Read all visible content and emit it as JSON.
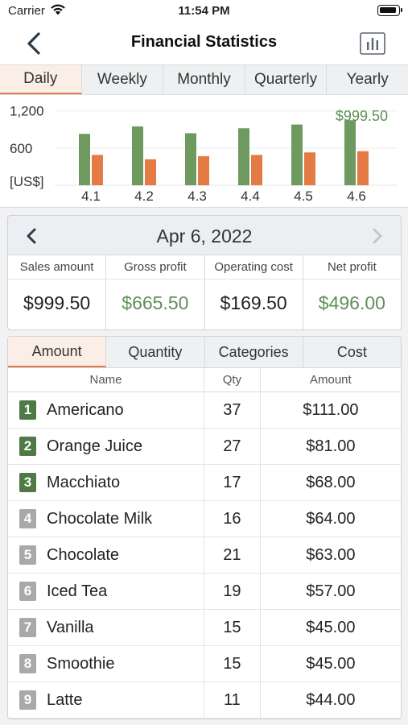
{
  "status_bar": {
    "carrier": "Carrier",
    "time": "11:54 PM"
  },
  "nav": {
    "title": "Financial Statistics",
    "back_icon": "chevron-left-icon",
    "chart_icon": "bar-chart-icon"
  },
  "period_tabs": [
    {
      "label": "Daily",
      "active": true
    },
    {
      "label": "Weekly",
      "active": false
    },
    {
      "label": "Monthly",
      "active": false
    },
    {
      "label": "Quarterly",
      "active": false
    },
    {
      "label": "Yearly",
      "active": false
    }
  ],
  "chart_data": {
    "type": "bar",
    "categories": [
      "4.1",
      "4.2",
      "4.3",
      "4.4",
      "4.5",
      "4.6"
    ],
    "series": [
      {
        "color": "#6e9a5f",
        "values": [
          830,
          950,
          840,
          920,
          980,
          1050
        ]
      },
      {
        "color": "#e47b45",
        "values": [
          490,
          420,
          470,
          490,
          530,
          550
        ]
      }
    ],
    "y_ticks": [
      "1,200",
      "600"
    ],
    "ylabel": "[US$]",
    "ylim": [
      0,
      1300
    ],
    "annotation": "$999.50",
    "annotation_color": "#5f8f57",
    "grid": true
  },
  "date_card": {
    "date": "Apr 6, 2022",
    "metrics": [
      {
        "label": "Sales amount",
        "value": "$999.50",
        "green": false
      },
      {
        "label": "Gross profit",
        "value": "$665.50",
        "green": true
      },
      {
        "label": "Operating cost",
        "value": "$169.50",
        "green": false
      },
      {
        "label": "Net profit",
        "value": "$496.00",
        "green": true
      }
    ]
  },
  "table_tabs": [
    {
      "label": "Amount",
      "active": true
    },
    {
      "label": "Quantity",
      "active": false
    },
    {
      "label": "Categories",
      "active": false
    },
    {
      "label": "Cost",
      "active": false
    }
  ],
  "table": {
    "headers": {
      "name": "Name",
      "qty": "Qty",
      "amount": "Amount"
    },
    "rows": [
      {
        "rank": "1",
        "name": "Americano",
        "qty": "37",
        "amount": "$111.00",
        "top": true
      },
      {
        "rank": "2",
        "name": "Orange Juice",
        "qty": "27",
        "amount": "$81.00",
        "top": true
      },
      {
        "rank": "3",
        "name": "Macchiato",
        "qty": "17",
        "amount": "$68.00",
        "top": true
      },
      {
        "rank": "4",
        "name": "Chocolate Milk",
        "qty": "16",
        "amount": "$64.00",
        "top": false
      },
      {
        "rank": "5",
        "name": "Chocolate",
        "qty": "21",
        "amount": "$63.00",
        "top": false
      },
      {
        "rank": "6",
        "name": "Iced Tea",
        "qty": "19",
        "amount": "$57.00",
        "top": false
      },
      {
        "rank": "7",
        "name": "Vanilla",
        "qty": "15",
        "amount": "$45.00",
        "top": false
      },
      {
        "rank": "8",
        "name": "Smoothie",
        "qty": "15",
        "amount": "$45.00",
        "top": false
      },
      {
        "rank": "9",
        "name": "Latte",
        "qty": "11",
        "amount": "$44.00",
        "top": false
      }
    ]
  }
}
